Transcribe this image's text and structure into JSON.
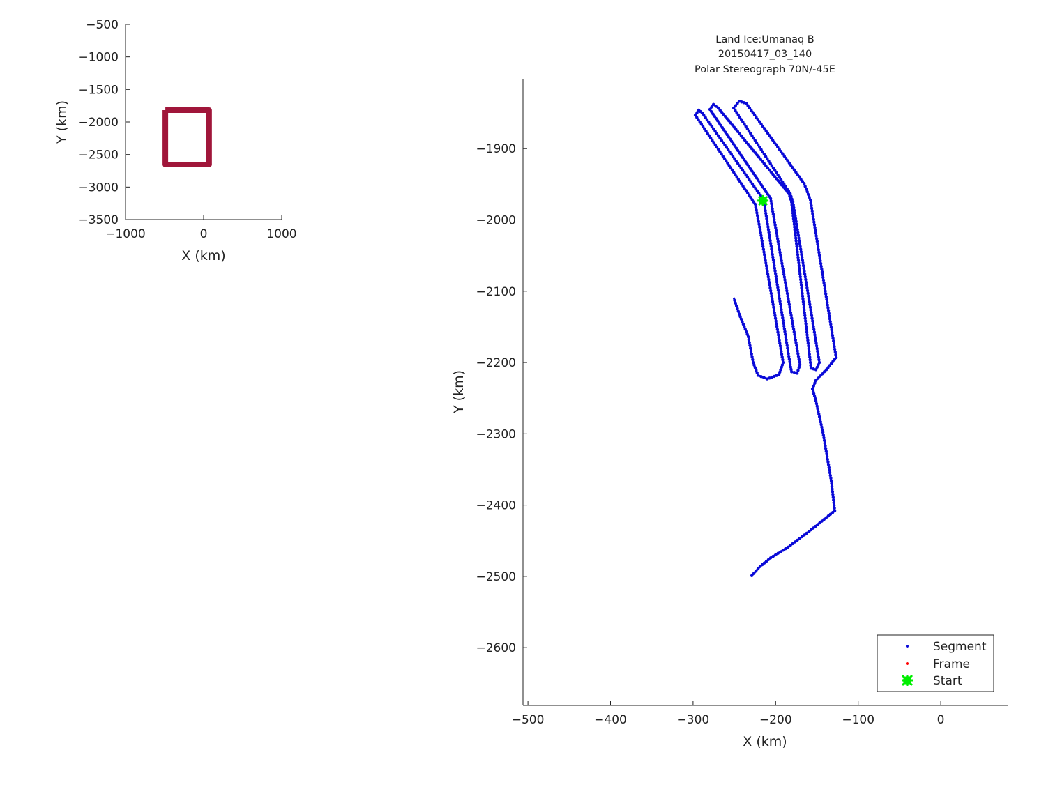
{
  "chart_data": [
    {
      "type": "line",
      "xlabel": "X (km)",
      "ylabel": "Y (km)",
      "xlim": [
        -1000,
        1000
      ],
      "ylim": [
        -3500,
        -500
      ],
      "xticks": [
        -1000,
        0,
        1000
      ],
      "yticks": [
        -3500,
        -3000,
        -2500,
        -2000,
        -1500,
        -1000,
        -500
      ],
      "grid": false,
      "color": "#a0163a",
      "series": [
        {
          "x": [
            -490,
            70,
            70,
            -490,
            -490
          ],
          "y": [
            -1818,
            -1818,
            -2654,
            -2654,
            -1818
          ]
        }
      ]
    },
    {
      "type": "scatter",
      "title": [
        "Land Ice:Umanaq B",
        "20150417_03_140",
        "Polar Stereograph 70N/-45E"
      ],
      "xlabel": "X (km)",
      "ylabel": "Y (km)",
      "xlim": [
        -506,
        81
      ],
      "ylim": [
        -2681,
        -1802
      ],
      "xticks": [
        -500,
        -400,
        -300,
        -200,
        -100,
        0
      ],
      "yticks": [
        -2600,
        -2500,
        -2400,
        -2300,
        -2200,
        -2100,
        -2000,
        -1900
      ],
      "grid": false,
      "legend_position": "bottom-right",
      "series": [
        {
          "name": "Segment",
          "color": "#0a0ad8",
          "marker": "dot",
          "x": [
            -228.9,
            -218.8,
            -206.1,
            -185,
            -159.6,
            -128.4,
            -132.6,
            -142.7,
            -151.2,
            -155.4,
            -151.2,
            -138.5,
            -126.7,
            -157.9,
            -165.5,
            -235.6,
            -244.1,
            -250.8,
            -182.4,
            -179.1,
            -147,
            -151.2,
            -157.1,
            -157.9,
            -180.7,
            -184.1,
            -269.4,
            -275.3,
            -279.6,
            -206.1,
            -203.5,
            -170.6,
            -174,
            -180.7,
            -182.4,
            -210.3,
            -214.5,
            -288.9,
            -293.1,
            -297.3,
            -224.7,
            -218.8,
            -190.9,
            -196,
            -210.3,
            -221.3,
            -227.2,
            -233.1,
            -244.1,
            -250.8
          ],
          "y": [
            -2499,
            -2486,
            -2474,
            -2459,
            -2437,
            -2408,
            -2366,
            -2298,
            -2254,
            -2237,
            -2225,
            -2210,
            -2193,
            -1972,
            -1949,
            -1836.5,
            -1833.5,
            -1843,
            -1963,
            -1975,
            -2200,
            -2210,
            -2208,
            -2200,
            -1975,
            -1963,
            -1843,
            -1838,
            -1845,
            -1970,
            -1988,
            -2203,
            -2215,
            -2213,
            -2203,
            -2002,
            -1972,
            -1850,
            -1846,
            -1853,
            -1978,
            -2014,
            -2200,
            -2217,
            -2223,
            -2218,
            -2200,
            -2164,
            -2132,
            -2109
          ]
        },
        {
          "name": "Frame",
          "color": "#ff0000",
          "marker": "dot",
          "x": [],
          "y": []
        },
        {
          "name": "Start",
          "color": "#00ee00",
          "marker": "star",
          "x": [
            -215.4
          ],
          "y": [
            -1973
          ]
        }
      ]
    }
  ]
}
